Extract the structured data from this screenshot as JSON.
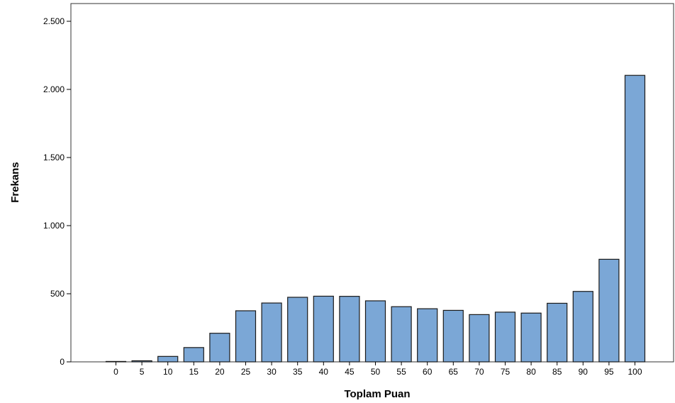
{
  "chart_data": {
    "type": "bar",
    "title": "",
    "xlabel": "Toplam Puan",
    "ylabel": "Frekans",
    "categories": [
      "0",
      "5",
      "10",
      "15",
      "20",
      "25",
      "30",
      "35",
      "40",
      "45",
      "50",
      "55",
      "60",
      "65",
      "70",
      "75",
      "80",
      "85",
      "90",
      "95",
      "100"
    ],
    "values": [
      3,
      8,
      40,
      105,
      210,
      375,
      432,
      474,
      482,
      481,
      448,
      405,
      390,
      378,
      347,
      365,
      358,
      430,
      517,
      753,
      2103
    ],
    "ylim": [
      0,
      2500
    ],
    "yticks": [
      0,
      500,
      1000,
      1500,
      2000,
      2500
    ],
    "ytick_labels": [
      "0",
      "500",
      "1.000",
      "1.500",
      "2.000",
      "2.500"
    ],
    "grid": false,
    "bar_color": "#7ba7d6",
    "bar_edge_color": "#1a1a1a"
  }
}
